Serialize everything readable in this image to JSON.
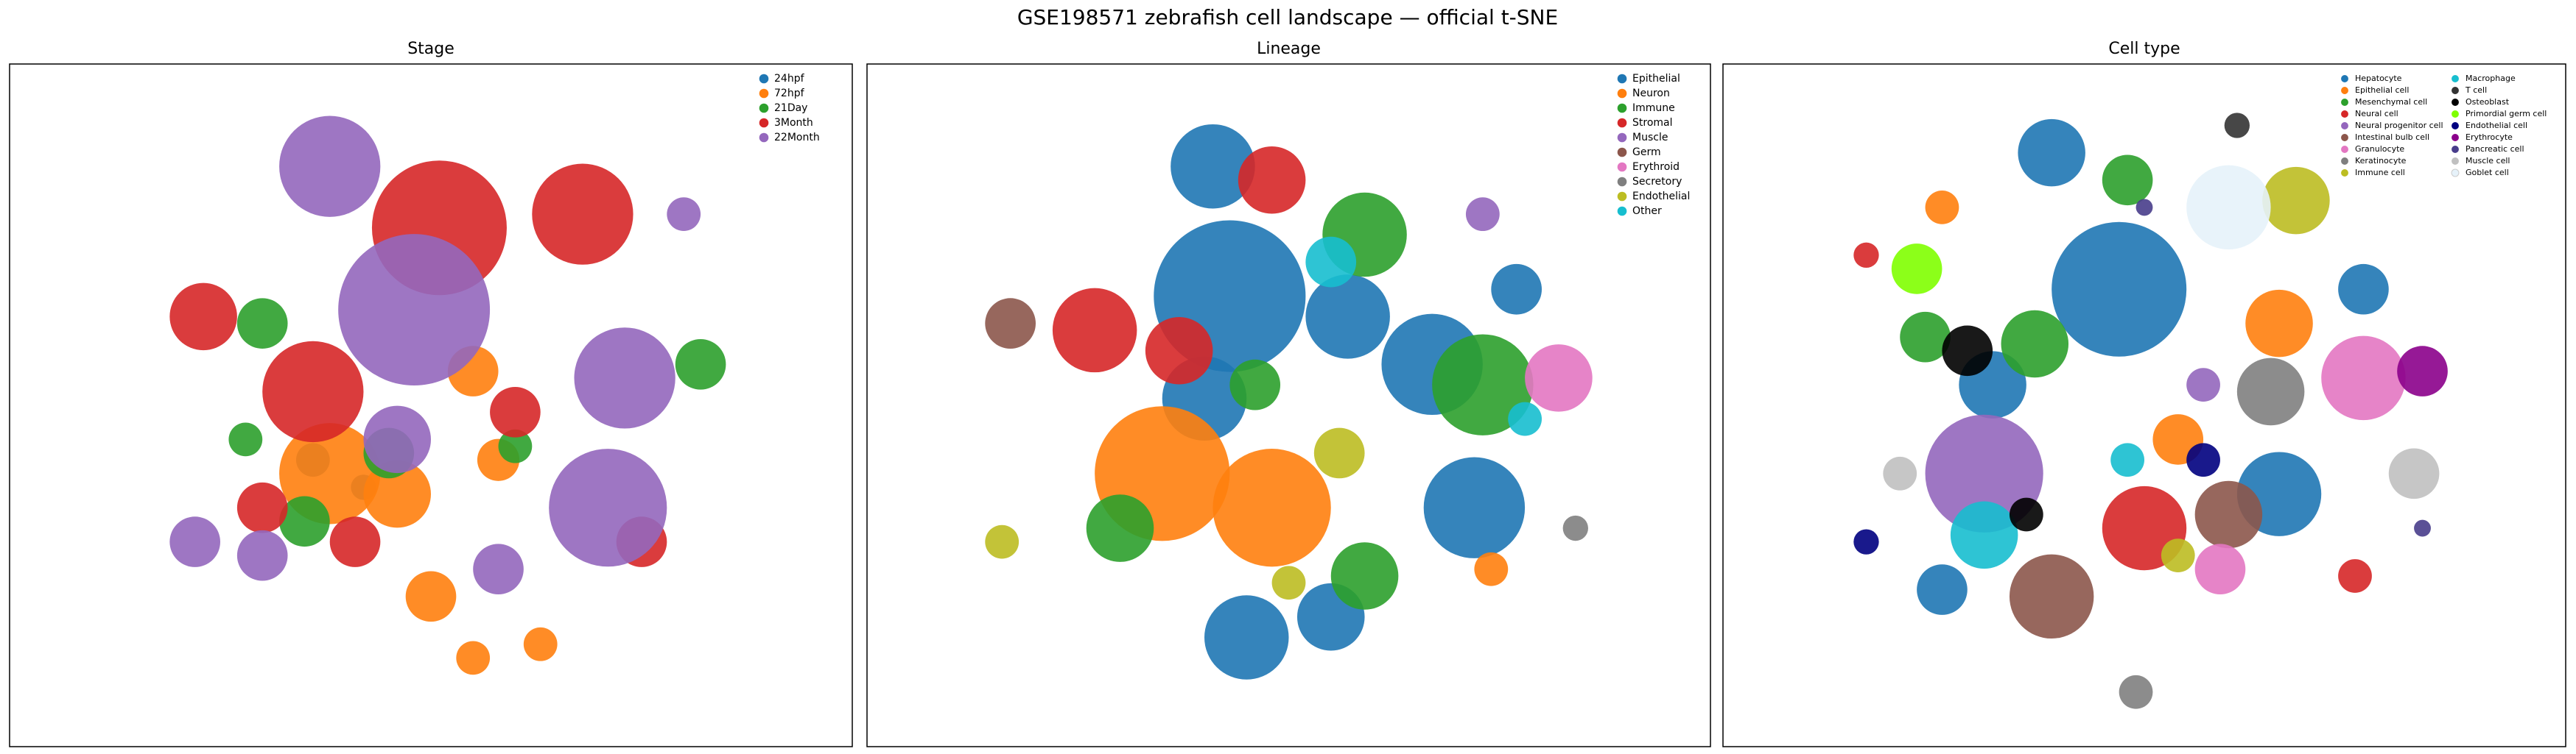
{
  "title": "GSE198571 zebrafish cell landscape — official t-SNE",
  "chart_data": [
    {
      "type": "scatter",
      "title": "Stage",
      "xlim": [
        0,
        100
      ],
      "ylim": [
        0,
        100
      ],
      "legend": "upper right",
      "legend_columns": 1,
      "series": [
        {
          "name": "24hpf",
          "color": "#1f77b4",
          "x": [
            36,
            42
          ],
          "values": [
            42,
            38
          ],
          "size": [
            2,
            1.5
          ]
        },
        {
          "name": "72hpf",
          "color": "#ff7f0e",
          "x": [
            38,
            46,
            55,
            50,
            58,
            63,
            55
          ],
          "values": [
            40,
            37,
            55,
            22,
            42,
            15,
            13
          ],
          "size": [
            6,
            4,
            3,
            3,
            2.5,
            2,
            2
          ]
        },
        {
          "name": "21Day",
          "color": "#2ca02c",
          "x": [
            30,
            35,
            45,
            82,
            60,
            28
          ],
          "values": [
            62,
            33,
            43,
            56,
            44,
            45
          ],
          "size": [
            3,
            3,
            3,
            3,
            2,
            2
          ]
        },
        {
          "name": "3Month",
          "color": "#d62728",
          "x": [
            51,
            36,
            68,
            30,
            23,
            60,
            41,
            75
          ],
          "values": [
            76,
            52,
            78,
            35,
            63,
            49,
            30,
            30
          ],
          "size": [
            8,
            6,
            6,
            3,
            4,
            3,
            3,
            3
          ]
        },
        {
          "name": "22Month",
          "color": "#9467bd",
          "x": [
            38,
            48,
            73,
            71,
            30,
            46,
            58,
            22,
            80
          ],
          "values": [
            85,
            64,
            54,
            35,
            28,
            45,
            26,
            30,
            78
          ],
          "size": [
            6,
            9,
            6,
            7,
            3,
            4,
            3,
            3,
            2
          ]
        }
      ]
    },
    {
      "type": "scatter",
      "title": "Lineage",
      "xlim": [
        0,
        100
      ],
      "ylim": [
        0,
        100
      ],
      "legend": "upper right",
      "legend_columns": 1,
      "series": [
        {
          "name": "Epithelial",
          "color": "#1f77b4",
          "x": [
            43,
            41,
            67,
            72,
            40,
            57,
            45,
            55,
            77
          ],
          "values": [
            66,
            85,
            56,
            35,
            51,
            63,
            16,
            19,
            67
          ],
          "size": [
            9,
            5,
            6,
            6,
            5,
            5,
            5,
            4,
            3
          ]
        },
        {
          "name": "Neuron",
          "color": "#ff7f0e",
          "x": [
            35,
            48,
            74
          ],
          "values": [
            40,
            35,
            26
          ],
          "size": [
            8,
            7,
            2
          ]
        },
        {
          "name": "Immune",
          "color": "#2ca02c",
          "x": [
            59,
            73,
            30,
            59,
            46
          ],
          "values": [
            75,
            53,
            32,
            25,
            53
          ],
          "size": [
            5,
            6,
            4,
            4,
            3
          ]
        },
        {
          "name": "Stromal",
          "color": "#d62728",
          "x": [
            27,
            48,
            37
          ],
          "values": [
            61,
            83,
            58
          ],
          "size": [
            5,
            4,
            4
          ]
        },
        {
          "name": "Muscle",
          "color": "#9467bd",
          "x": [
            73
          ],
          "values": [
            78
          ],
          "size": [
            2
          ]
        },
        {
          "name": "Germ",
          "color": "#8c564b",
          "x": [
            17
          ],
          "values": [
            62
          ],
          "size": [
            3
          ]
        },
        {
          "name": "Erythroid",
          "color": "#e377c2",
          "x": [
            82
          ],
          "values": [
            54
          ],
          "size": [
            4
          ]
        },
        {
          "name": "Secretory",
          "color": "#7f7f7f",
          "x": [
            84
          ],
          "values": [
            32
          ],
          "size": [
            1.5
          ]
        },
        {
          "name": "Endothelial",
          "color": "#bcbd22",
          "x": [
            56,
            50,
            16
          ],
          "values": [
            43,
            24,
            30
          ],
          "size": [
            3,
            2,
            2
          ]
        },
        {
          "name": "Other",
          "color": "#17becf",
          "x": [
            55,
            78
          ],
          "values": [
            71,
            48
          ],
          "size": [
            3,
            2
          ]
        }
      ]
    },
    {
      "type": "scatter",
      "title": "Cell type",
      "xlim": [
        0,
        100
      ],
      "ylim": [
        0,
        100
      ],
      "legend": "upper right",
      "legend_columns": 2,
      "series": [
        {
          "name": "Hepatocyte",
          "color": "#1f77b4",
          "x": [
            39,
            47,
            32,
            66,
            76,
            26
          ],
          "values": [
            87,
            67,
            53,
            37,
            67,
            23
          ],
          "size": [
            4,
            8,
            4,
            5,
            3,
            3
          ]
        },
        {
          "name": "Epithelial cell",
          "color": "#ff7f0e",
          "x": [
            66,
            54,
            26
          ],
          "values": [
            62,
            45,
            79
          ],
          "size": [
            4,
            3,
            2
          ]
        },
        {
          "name": "Mesenchymal cell",
          "color": "#2ca02c",
          "x": [
            48,
            37,
            24
          ],
          "values": [
            83,
            59,
            60
          ],
          "size": [
            3,
            4,
            3
          ]
        },
        {
          "name": "Neural cell",
          "color": "#d62728",
          "x": [
            50,
            17,
            75
          ],
          "values": [
            32,
            72,
            25
          ],
          "size": [
            5,
            1.5,
            2
          ]
        },
        {
          "name": "Neural progenitor cell",
          "color": "#9467bd",
          "x": [
            31,
            57
          ],
          "values": [
            40,
            53
          ],
          "size": [
            7,
            2
          ]
        },
        {
          "name": "Intestinal bulb cell",
          "color": "#8c564b",
          "x": [
            39,
            60
          ],
          "values": [
            22,
            34
          ],
          "size": [
            5,
            4
          ]
        },
        {
          "name": "Granulocyte",
          "color": "#e377c2",
          "x": [
            59,
            76
          ],
          "values": [
            26,
            54
          ],
          "size": [
            3,
            5
          ]
        },
        {
          "name": "Keratinocyte",
          "color": "#7f7f7f",
          "x": [
            65,
            49
          ],
          "values": [
            52,
            8
          ],
          "size": [
            4,
            2
          ]
        },
        {
          "name": "Immune cell",
          "color": "#bcbd22",
          "x": [
            68,
            54
          ],
          "values": [
            80,
            28
          ],
          "size": [
            4,
            2
          ]
        },
        {
          "name": "Macrophage",
          "color": "#17becf",
          "x": [
            31,
            48
          ],
          "values": [
            31,
            42
          ],
          "size": [
            4,
            2
          ]
        },
        {
          "name": "T cell",
          "color": "#333333",
          "x": [
            61
          ],
          "values": [
            91
          ],
          "size": [
            1.5
          ]
        },
        {
          "name": "Osteoblast",
          "color": "#000000",
          "x": [
            29,
            36
          ],
          "values": [
            58,
            34
          ],
          "size": [
            3,
            2
          ]
        },
        {
          "name": "Primordial germ cell",
          "color": "#7fff00",
          "x": [
            23
          ],
          "values": [
            70
          ],
          "size": [
            3
          ]
        },
        {
          "name": "Endothelial cell",
          "color": "#000080",
          "x": [
            57,
            17
          ],
          "values": [
            42,
            30
          ],
          "size": [
            2,
            1.5
          ]
        },
        {
          "name": "Erythrocyte",
          "color": "#8b008b",
          "x": [
            83
          ],
          "values": [
            55
          ],
          "size": [
            3
          ]
        },
        {
          "name": "Pancreatic cell",
          "color": "#483d8b",
          "x": [
            50,
            83
          ],
          "values": [
            79,
            32
          ],
          "size": [
            1,
            1
          ]
        },
        {
          "name": "Muscle cell",
          "color": "#c0c0c0",
          "x": [
            82,
            21
          ],
          "values": [
            40,
            40
          ],
          "size": [
            3,
            2
          ]
        },
        {
          "name": "Goblet cell",
          "color": "#e6f2fa",
          "x": [
            60
          ],
          "values": [
            79
          ],
          "size": [
            5
          ]
        }
      ]
    }
  ]
}
